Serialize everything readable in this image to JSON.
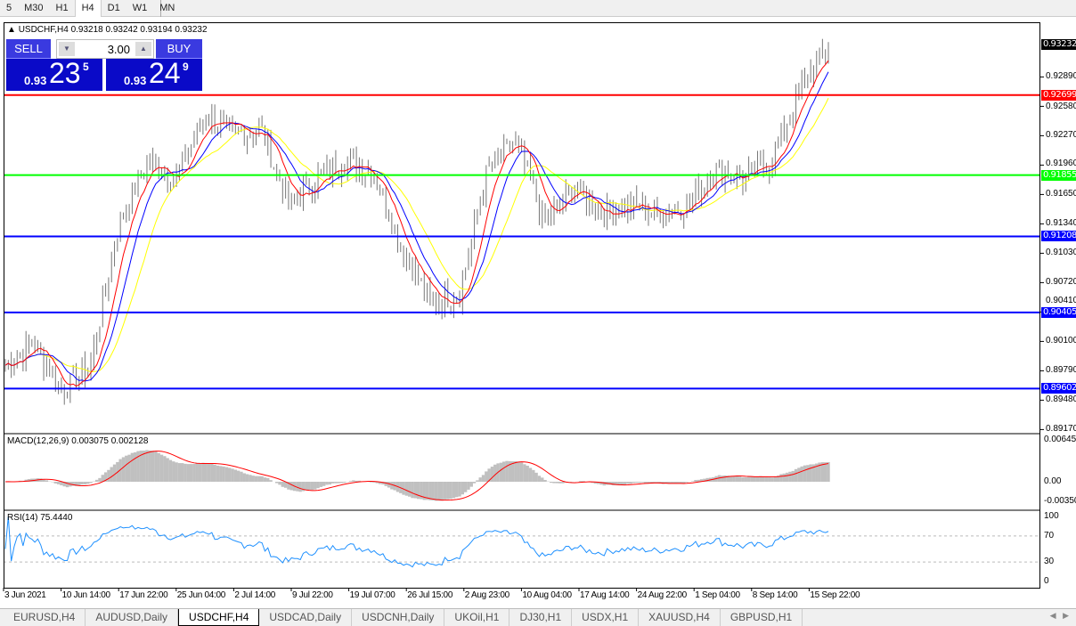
{
  "timeframes": [
    {
      "label": "5"
    },
    {
      "label": "M30"
    },
    {
      "label": "H1"
    },
    {
      "label": "H4",
      "active": true
    },
    {
      "label": "D1"
    },
    {
      "label": "W1"
    },
    {
      "label": "MN"
    }
  ],
  "chart": {
    "header": "USDCHF,H4  0.93218 0.93242 0.93194 0.93232",
    "symbol": "USDCHF,H4"
  },
  "trade_panel": {
    "sell_label": "SELL",
    "buy_label": "BUY",
    "lot": "3.00",
    "sell_prefix": "0.93",
    "sell_big": "23",
    "sell_pip": "5",
    "buy_prefix": "0.93",
    "buy_big": "24",
    "buy_pip": "9"
  },
  "price_axis": [
    "0.92890",
    "0.92580",
    "0.92270",
    "0.91960",
    "0.91650",
    "0.91340",
    "0.91030",
    "0.90720",
    "0.90410",
    "0.90100",
    "0.89790",
    "0.89480",
    "0.89170"
  ],
  "current_price": {
    "value": "0.93232",
    "color": "#000000"
  },
  "hlines": [
    {
      "value": "0.92699",
      "color": "#ff0000"
    },
    {
      "value": "0.91855",
      "color": "#00ff00"
    },
    {
      "value": "0.91208",
      "color": "#0000ff"
    },
    {
      "value": "0.90405",
      "color": "#0000ff"
    },
    {
      "value": "0.89602",
      "color": "#0000ff"
    }
  ],
  "macd": {
    "label": "MACD(12,26,9) 0.003075 0.002128",
    "axis": [
      "0.006451",
      "0.00",
      "-0.00350"
    ]
  },
  "rsi": {
    "label": "RSI(14) 75.4440",
    "axis": [
      "100",
      "70",
      "30",
      "0"
    ],
    "levels": [
      70,
      30
    ]
  },
  "time_axis": [
    "3 Jun 2021",
    "10 Jun 14:00",
    "17 Jun 22:00",
    "25 Jun 04:00",
    "2 Jul 14:00",
    "9 Jul 22:00",
    "19 Jul 07:00",
    "26 Jul 15:00",
    "2 Aug 23:00",
    "10 Aug 04:00",
    "17 Aug 14:00",
    "24 Aug 22:00",
    "1 Sep 04:00",
    "8 Sep 14:00",
    "15 Sep 22:00"
  ],
  "chart_data": {
    "type": "line",
    "description_of_series": "approximate close path",
    "closes": [
      0.8985,
      0.9009,
      0.8957,
      0.8985,
      0.9135,
      0.9201,
      0.9182,
      0.9248,
      0.9229,
      0.9234,
      0.9154,
      0.9182,
      0.9201,
      0.9187,
      0.9107,
      0.9051,
      0.906,
      0.9192,
      0.922,
      0.9135,
      0.9173,
      0.9145,
      0.9154,
      0.9145,
      0.9154,
      0.9192,
      0.9182,
      0.9201,
      0.9276,
      0.9323
    ],
    "ylim": [
      0.8917,
      0.934
    ]
  },
  "tabs": [
    {
      "label": "EURUSD,H4"
    },
    {
      "label": "AUDUSD,Daily"
    },
    {
      "label": "USDCHF,H4",
      "active": true
    },
    {
      "label": "USDCAD,Daily"
    },
    {
      "label": "USDCNH,Daily"
    },
    {
      "label": "UKOil,H1"
    },
    {
      "label": "DJ30,H1"
    },
    {
      "label": "USDX,H1"
    },
    {
      "label": "XAUUSD,H4"
    },
    {
      "label": "GBPUSD,H1"
    }
  ]
}
